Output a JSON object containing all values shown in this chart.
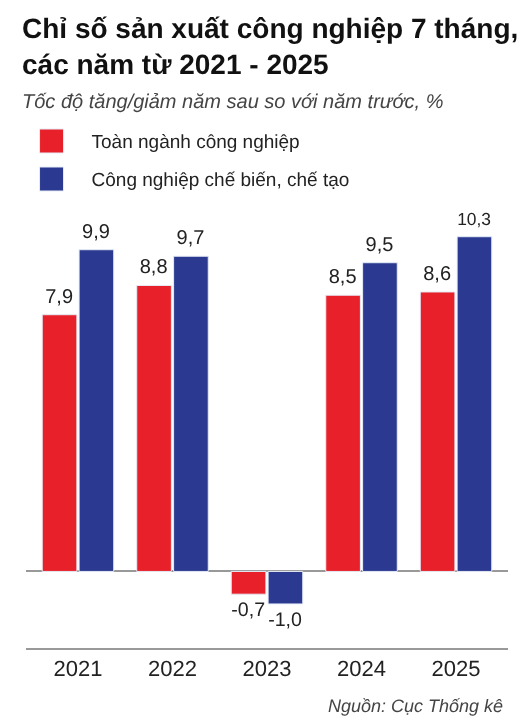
{
  "chart_data": {
    "type": "bar",
    "title": "Chỉ số sản xuất công nghiệp 7 tháng, các năm từ 2021 - 2025",
    "subtitle": "Tốc độ tăng/giảm năm sau so với năm trước, %",
    "categories": [
      "2021",
      "2022",
      "2023",
      "2024",
      "2025"
    ],
    "series": [
      {
        "name": "Toàn ngành công nghiệp",
        "color": "#e8202a",
        "values": [
          7.9,
          8.8,
          -0.7,
          8.5,
          8.6
        ],
        "value_labels": [
          "7,9",
          "8,8",
          "-0,7",
          "8,5",
          "8,6"
        ]
      },
      {
        "name": "Công nghiệp chế biến, chế tạo",
        "color": "#2b3990",
        "values": [
          9.9,
          9.7,
          -1.0,
          9.5,
          10.3
        ],
        "value_labels": [
          "9,9",
          "9,7",
          "-1,0",
          "9,5",
          "10,3"
        ]
      }
    ],
    "annotations": [
      "Nguồn: Cục Thống kê"
    ],
    "legend": "top left",
    "tick_labels": "x"
  }
}
